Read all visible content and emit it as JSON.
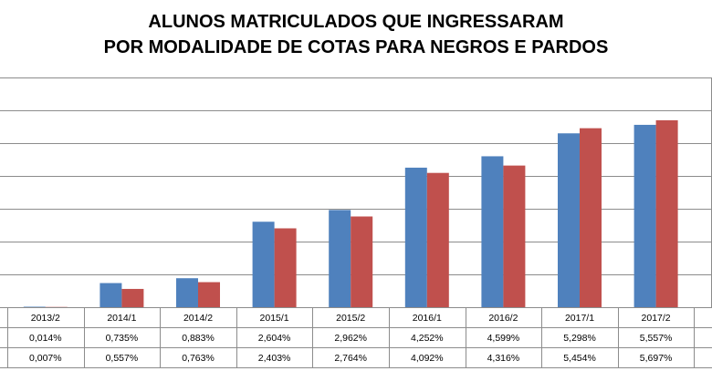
{
  "chart_data": {
    "type": "bar",
    "title": "ALUNOS MATRICULADOS QUE INGRESSARAM",
    "subtitle": "POR MODALIDADE DE COTAS PARA NEGROS E PARDOS",
    "categories": [
      "2013/2",
      "2014/1",
      "2014/2",
      "2015/1",
      "2015/2",
      "2016/1",
      "2016/2",
      "2017/1",
      "2017/2"
    ],
    "series": [
      {
        "color": "#4f81bd",
        "values": [
          0.014,
          0.735,
          0.883,
          2.604,
          2.962,
          4.252,
          4.599,
          5.298,
          5.557
        ],
        "labels": [
          "0,014%",
          "0,735%",
          "0,883%",
          "2,604%",
          "2,962%",
          "4,252%",
          "4,599%",
          "5,298%",
          "5,557%"
        ]
      },
      {
        "color": "#c0504d",
        "values": [
          0.007,
          0.557,
          0.763,
          2.403,
          2.764,
          4.092,
          4.316,
          5.454,
          5.697
        ],
        "labels": [
          "0,007%",
          "0,557%",
          "0,763%",
          "2,403%",
          "2,764%",
          "4,092%",
          "4,316%",
          "5,454%",
          "5,697%"
        ]
      }
    ],
    "ylim": [
      0,
      7
    ],
    "grid": true,
    "legend": "data table below chart"
  }
}
